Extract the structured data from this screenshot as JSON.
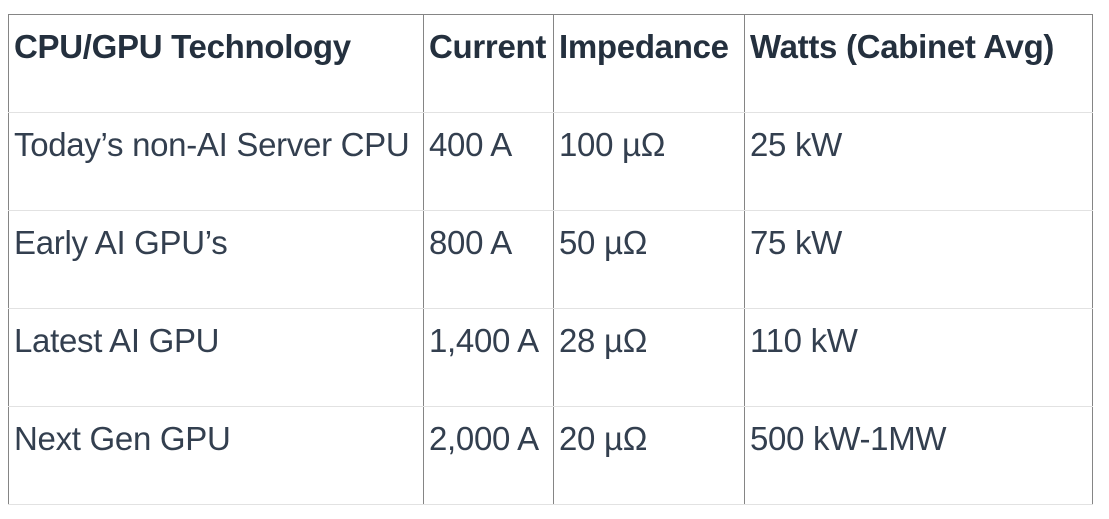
{
  "table": {
    "columns": [
      "CPU/GPU Technology",
      "Current",
      "Impedance",
      "Watts (Cabinet Avg)"
    ],
    "rows": [
      [
        "Today’s non-AI Server CPU",
        "400 A",
        "100 µΩ",
        "25 kW"
      ],
      [
        "Early AI GPU’s",
        "800 A",
        "50 µΩ",
        "75 kW"
      ],
      [
        "Latest AI GPU",
        "1,400 A",
        "28 µΩ",
        "110 kW"
      ],
      [
        "Next Gen GPU",
        "2,000 A",
        "20 µΩ",
        "500 kW-1MW"
      ]
    ]
  },
  "chart_data": {
    "type": "table",
    "title": "",
    "columns": [
      "CPU/GPU Technology",
      "Current",
      "Impedance",
      "Watts (Cabinet Avg)"
    ],
    "rows": [
      [
        "Today’s non-AI Server CPU",
        "400 A",
        "100 µΩ",
        "25 kW"
      ],
      [
        "Early AI GPU’s",
        "800 A",
        "50 µΩ",
        "75 kW"
      ],
      [
        "Latest AI GPU",
        "1,400 A",
        "28 µΩ",
        "110 kW"
      ],
      [
        "Next Gen GPU",
        "2,000 A",
        "20 µΩ",
        "500 kW-1MW"
      ]
    ],
    "numeric": {
      "technologies": [
        "Today’s non-AI Server CPU",
        "Early AI GPU’s",
        "Latest AI GPU",
        "Next Gen GPU"
      ],
      "current_amps": [
        400,
        800,
        1400,
        2000
      ],
      "impedance_micro_ohms": [
        100,
        50,
        28,
        20
      ],
      "watts_cabinet_avg_kw": [
        25,
        75,
        110,
        "500-1000"
      ]
    }
  },
  "colors": {
    "background": "#ffffff",
    "header_text": "#24303e",
    "body_text": "#333f4f",
    "border_vertical": "#858585",
    "border_horizontal": "#e2e2e2"
  }
}
